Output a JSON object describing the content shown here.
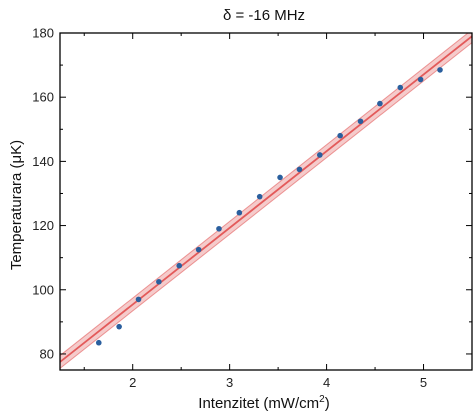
{
  "chart_data": {
    "type": "scatter",
    "title": "δ = -16 MHz",
    "xlabel": "Intenzitet (mW/cm",
    "xlabel_sup": "2",
    "xlabel_end": ")",
    "ylabel": "Temperaturara (μK)",
    "xlim": [
      1.25,
      5.5
    ],
    "ylim": [
      75,
      180
    ],
    "x_ticks": [
      2,
      3,
      4,
      5
    ],
    "y_ticks": [
      80,
      100,
      120,
      140,
      160,
      180
    ],
    "grid": false,
    "colors": {
      "points": "#2a5f9e",
      "fit_line": "#e35a5a",
      "confidence_band": "#f2b9b9"
    },
    "series": [
      {
        "type": "scatter",
        "points": [
          {
            "x": 1.65,
            "y": 83.5
          },
          {
            "x": 1.86,
            "y": 88.5
          },
          {
            "x": 2.06,
            "y": 97.0
          },
          {
            "x": 2.27,
            "y": 102.5
          },
          {
            "x": 2.48,
            "y": 107.5
          },
          {
            "x": 2.68,
            "y": 112.5
          },
          {
            "x": 2.89,
            "y": 119.0
          },
          {
            "x": 3.1,
            "y": 124.0
          },
          {
            "x": 3.31,
            "y": 129.0
          },
          {
            "x": 3.52,
            "y": 135.0
          },
          {
            "x": 3.72,
            "y": 137.5
          },
          {
            "x": 3.93,
            "y": 142.0
          },
          {
            "x": 4.14,
            "y": 148.0
          },
          {
            "x": 4.35,
            "y": 152.5
          },
          {
            "x": 4.55,
            "y": 158.0
          },
          {
            "x": 4.76,
            "y": 163.0
          },
          {
            "x": 4.97,
            "y": 165.5
          },
          {
            "x": 5.17,
            "y": 168.5
          }
        ]
      },
      {
        "type": "line",
        "role": "linear fit",
        "points": [
          {
            "x": 1.25,
            "y": 77.5
          },
          {
            "x": 5.5,
            "y": 179.0
          }
        ],
        "band_halfwidth": 2.0
      }
    ]
  }
}
